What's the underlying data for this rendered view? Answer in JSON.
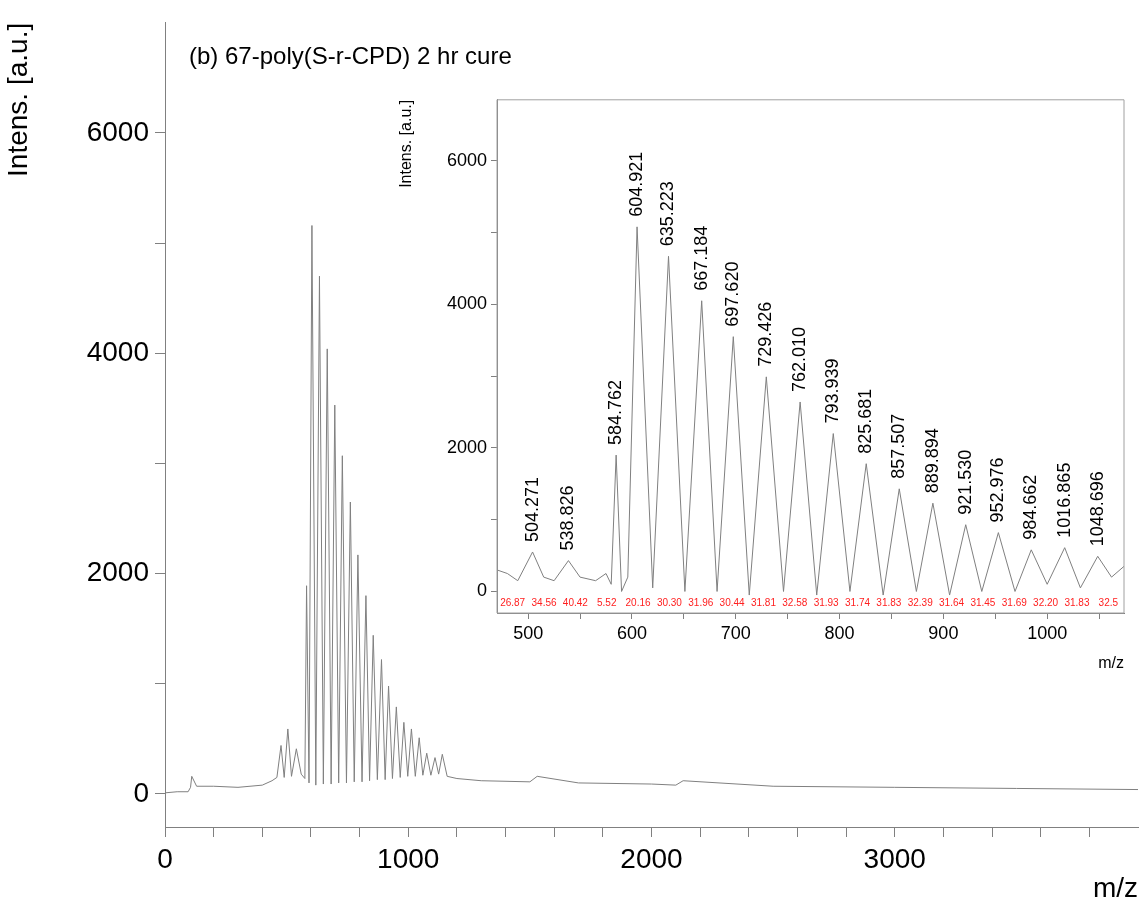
{
  "chart_data": [
    {
      "type": "line",
      "title": "(b) 67-poly(S-r-CPD) 2 hr cure",
      "xlabel": "m/z",
      "ylabel": "Intens. [a.u.]",
      "color": "#808080",
      "grid": false,
      "legend": false,
      "x": [
        0,
        50,
        95,
        105,
        110,
        130,
        200,
        300,
        400,
        440,
        460,
        477,
        490,
        505,
        520,
        540,
        560,
        575,
        582,
        592,
        604,
        620,
        635,
        651,
        667,
        683,
        698,
        714,
        729,
        746,
        762,
        778,
        793,
        810,
        826,
        841,
        856,
        873,
        890,
        905,
        919,
        935,
        951,
        967,
        982,
        998,
        1013,
        1029,
        1045,
        1060,
        1076,
        1093,
        1110,
        1125,
        1140,
        1160,
        1200,
        1300,
        1500,
        1530,
        1700,
        2000,
        2100,
        2130,
        2500,
        3000,
        3500,
        4000
      ],
      "values": [
        10,
        20,
        20,
        60,
        160,
        70,
        70,
        60,
        80,
        120,
        150,
        440,
        150,
        590,
        160,
        410,
        180,
        140,
        1890,
        100,
        5160,
        80,
        4700,
        90,
        4040,
        90,
        3530,
        100,
        3070,
        100,
        2650,
        110,
        2170,
        110,
        1800,
        120,
        1440,
        130,
        1220,
        130,
        980,
        140,
        790,
        150,
        650,
        160,
        590,
        160,
        510,
        170,
        370,
        170,
        330,
        180,
        360,
        160,
        140,
        120,
        110,
        160,
        100,
        90,
        80,
        120,
        70,
        60,
        50,
        40
      ],
      "xlim": [
        0,
        4000
      ],
      "ylim": [
        -300,
        7000
      ],
      "xticks": [
        0,
        {
          "value": 200,
          "label": null
        },
        {
          "value": 400,
          "label": null
        },
        {
          "value": 600,
          "label": null
        },
        {
          "value": 800,
          "label": null
        },
        1000,
        {
          "value": 1200,
          "label": null
        },
        {
          "value": 1400,
          "label": null
        },
        {
          "value": 1600,
          "label": null
        },
        {
          "value": 1800,
          "label": null
        },
        2000,
        {
          "value": 2200,
          "label": null
        },
        {
          "value": 2400,
          "label": null
        },
        {
          "value": 2600,
          "label": null
        },
        {
          "value": 2800,
          "label": null
        },
        3000,
        {
          "value": 3200,
          "label": null
        },
        {
          "value": 3400,
          "label": null
        },
        {
          "value": 3600,
          "label": null
        },
        {
          "value": 3800,
          "label": null
        }
      ],
      "yticks": [
        0,
        {
          "value": 1000,
          "label": null
        },
        2000,
        {
          "value": 3000,
          "label": null
        },
        4000,
        {
          "value": 5000,
          "label": null
        },
        6000
      ]
    },
    {
      "type": "line",
      "xlabel": "m/z",
      "ylabel": "Intens. [a.u.]",
      "color": "#808080",
      "grid": false,
      "legend": false,
      "x": [
        470,
        480,
        490,
        504.271,
        515,
        525,
        538.826,
        550,
        565,
        575,
        580,
        584.762,
        590,
        596,
        604.921,
        620,
        635.223,
        651,
        667.184,
        682,
        697.62,
        713,
        729.426,
        746,
        762.01,
        778,
        793.939,
        810,
        825.681,
        842,
        857.507,
        874,
        889.894,
        906,
        921.53,
        937,
        952.976,
        969,
        984.662,
        1000,
        1016.865,
        1032,
        1048.696,
        1062,
        1074
      ],
      "values": [
        300,
        250,
        150,
        550,
        200,
        150,
        430,
        200,
        150,
        250,
        100,
        1900,
        0,
        200,
        5080,
        50,
        4670,
        0,
        4050,
        0,
        3550,
        -50,
        2990,
        0,
        2640,
        -50,
        2200,
        0,
        1780,
        -50,
        1430,
        0,
        1230,
        -50,
        930,
        0,
        820,
        0,
        580,
        100,
        610,
        50,
        490,
        200,
        350
      ],
      "xlim": [
        470,
        1074
      ],
      "ylim": [
        -300,
        6850
      ],
      "xticks": [
        500,
        {
          "value": 550,
          "label": null
        },
        600,
        {
          "value": 650,
          "label": null
        },
        700,
        {
          "value": 750,
          "label": null
        },
        800,
        {
          "value": 850,
          "label": null
        },
        900,
        {
          "value": 950,
          "label": null
        },
        1000,
        {
          "value": 1050,
          "label": null
        }
      ],
      "yticks": [
        0,
        {
          "value": 1000,
          "label": null
        },
        2000,
        {
          "value": 3000,
          "label": null
        },
        4000,
        {
          "value": 5000,
          "label": null
        },
        6000
      ],
      "annotations": [
        {
          "text": "504.271",
          "x": 504.271,
          "y": 550
        },
        {
          "text": "538.826",
          "x": 538.826,
          "y": 430
        },
        {
          "text": "584.762",
          "x": 584.762,
          "y": 1900
        },
        {
          "text": "604.921",
          "x": 604.921,
          "y": 5080
        },
        {
          "text": "635.223",
          "x": 635.223,
          "y": 4670
        },
        {
          "text": "667.184",
          "x": 667.184,
          "y": 4050
        },
        {
          "text": "697.620",
          "x": 697.62,
          "y": 3550
        },
        {
          "text": "729.426",
          "x": 729.426,
          "y": 2990
        },
        {
          "text": "762.010",
          "x": 762.01,
          "y": 2640
        },
        {
          "text": "793.939",
          "x": 793.939,
          "y": 2200
        },
        {
          "text": "825.681",
          "x": 825.681,
          "y": 1780
        },
        {
          "text": "857.507",
          "x": 857.507,
          "y": 1430
        },
        {
          "text": "889.894",
          "x": 889.894,
          "y": 1230
        },
        {
          "text": "921.530",
          "x": 921.53,
          "y": 930
        },
        {
          "text": "952.976",
          "x": 952.976,
          "y": 820
        },
        {
          "text": "984.662",
          "x": 984.662,
          "y": 580
        },
        {
          "text": "1016.865",
          "x": 1016.865,
          "y": 610
        },
        {
          "text": "1048.696",
          "x": 1048.696,
          "y": 490
        },
        "26.87",
        "34.56",
        "40.42",
        "5.52",
        "20.16",
        "30.30",
        "31.96",
        "30.44",
        "31.81",
        "32.58",
        "31.93",
        "31.74",
        "31.83",
        "32.39",
        "31.64",
        "31.45",
        "31.69",
        "32.20",
        "31.83",
        "32.5"
      ]
    }
  ]
}
